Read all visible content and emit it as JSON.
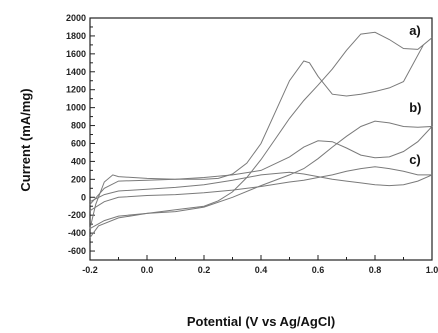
{
  "chart_data": {
    "type": "line",
    "title": "",
    "xlabel": "Potential (V vs Ag/AgCl)",
    "ylabel": "Current (mA/mg)",
    "xlim": [
      -0.2,
      1.0
    ],
    "ylim": [
      -700,
      2000
    ],
    "x_ticks": [
      -0.2,
      0.0,
      0.2,
      0.4,
      0.6,
      0.8,
      1.0
    ],
    "x_tick_labels": [
      "-0.2",
      "0.0",
      "0.2",
      "0.4",
      "0.6",
      "0.8",
      "1.0"
    ],
    "y_ticks": [
      -600,
      -400,
      -200,
      0,
      200,
      400,
      600,
      800,
      1000,
      1200,
      1400,
      1600,
      1800,
      2000
    ],
    "y_tick_labels": [
      "-600",
      "-400",
      "-200",
      "0",
      "200",
      "400",
      "600",
      "800",
      "1000",
      "1200",
      "1400",
      "1600",
      "1800",
      "2000"
    ],
    "grid": false,
    "curve_color": "#7a7a7a",
    "annotations": [
      {
        "text": "a)",
        "x": 0.92,
        "y": 1810
      },
      {
        "text": "b)",
        "x": 0.92,
        "y": 950
      },
      {
        "text": "c)",
        "x": 0.92,
        "y": 370
      }
    ],
    "series": [
      {
        "x": [
          -0.2,
          -0.17,
          -0.1,
          0.0,
          0.1,
          0.2,
          0.25,
          0.3,
          0.35,
          0.4,
          0.45,
          0.5,
          0.55,
          0.6,
          0.65,
          0.7,
          0.75,
          0.8,
          0.85,
          0.9,
          0.95,
          1.0,
          0.97,
          0.9,
          0.85,
          0.8,
          0.75,
          0.7,
          0.65,
          0.6,
          0.57,
          0.55,
          0.5,
          0.45,
          0.4,
          0.35,
          0.3,
          0.25,
          0.2,
          0.1,
          0.0,
          -0.1,
          -0.12,
          -0.15,
          -0.18,
          -0.2
        ],
        "y": [
          -450,
          -320,
          -230,
          -180,
          -140,
          -100,
          -40,
          60,
          220,
          420,
          650,
          880,
          1080,
          1250,
          1430,
          1640,
          1820,
          1840,
          1760,
          1660,
          1650,
          1780,
          1700,
          1290,
          1220,
          1180,
          1150,
          1130,
          1150,
          1350,
          1500,
          1520,
          1300,
          950,
          600,
          380,
          260,
          210,
          200,
          200,
          210,
          230,
          250,
          170,
          -80,
          -350
        ]
      },
      {
        "x": [
          -0.2,
          -0.15,
          -0.1,
          0.0,
          0.1,
          0.2,
          0.3,
          0.4,
          0.5,
          0.55,
          0.6,
          0.65,
          0.7,
          0.75,
          0.8,
          0.85,
          0.9,
          0.95,
          1.0,
          0.95,
          0.9,
          0.85,
          0.8,
          0.75,
          0.7,
          0.65,
          0.6,
          0.55,
          0.5,
          0.4,
          0.3,
          0.2,
          0.1,
          0.0,
          -0.1,
          -0.15,
          -0.2
        ],
        "y": [
          -350,
          -260,
          -210,
          -180,
          -160,
          -110,
          0,
          130,
          250,
          320,
          430,
          560,
          680,
          790,
          850,
          830,
          790,
          780,
          790,
          620,
          510,
          450,
          440,
          470,
          550,
          620,
          630,
          560,
          450,
          300,
          250,
          220,
          200,
          190,
          180,
          100,
          -80
        ]
      },
      {
        "x": [
          -0.2,
          -0.15,
          -0.1,
          0.0,
          0.1,
          0.2,
          0.3,
          0.4,
          0.5,
          0.55,
          0.6,
          0.65,
          0.7,
          0.75,
          0.8,
          0.85,
          0.9,
          0.95,
          1.0,
          0.95,
          0.9,
          0.85,
          0.8,
          0.75,
          0.7,
          0.65,
          0.6,
          0.55,
          0.5,
          0.4,
          0.3,
          0.2,
          0.1,
          0.0,
          -0.1,
          -0.15,
          -0.2
        ],
        "y": [
          -150,
          -50,
          0,
          20,
          30,
          50,
          80,
          120,
          170,
          190,
          220,
          250,
          290,
          320,
          340,
          320,
          290,
          250,
          250,
          180,
          140,
          130,
          140,
          160,
          180,
          200,
          230,
          260,
          280,
          250,
          190,
          140,
          110,
          90,
          70,
          30,
          -50
        ]
      }
    ]
  }
}
